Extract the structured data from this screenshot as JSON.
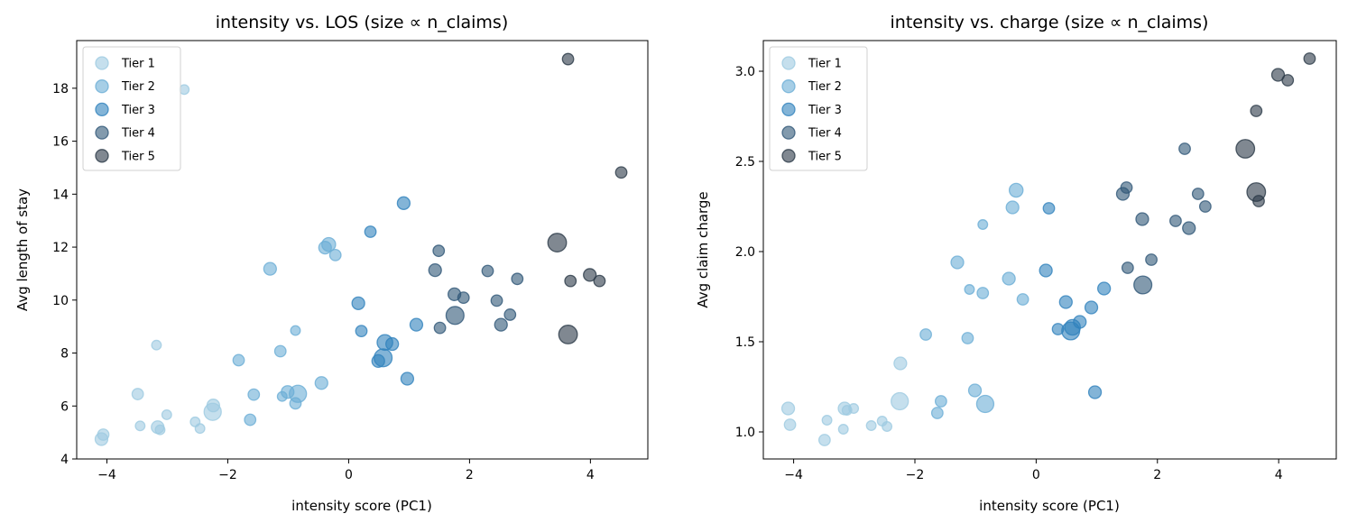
{
  "tier_colors": {
    "Tier 1": "#9ecae1",
    "Tier 2": "#6baed6",
    "Tier 3": "#3182bd",
    "Tier 4": "#2f5677",
    "Tier 5": "#2b3947"
  },
  "legend": [
    "Tier 1",
    "Tier 2",
    "Tier 3",
    "Tier 4",
    "Tier 5"
  ],
  "chart_data": [
    {
      "type": "scatter",
      "title": "intensity vs. LOS (size ∝ n_claims)",
      "xlabel": "intensity score (PC1)",
      "ylabel": "Avg length of stay",
      "xlim": [
        -4.5,
        4.95
      ],
      "ylim": [
        4,
        19.8
      ],
      "xticks": [
        -4,
        -2,
        0,
        2,
        4
      ],
      "yticks": [
        4,
        6,
        8,
        10,
        12,
        14,
        16,
        18
      ],
      "legend_position": "top-left",
      "grid": false,
      "yfield": "los"
    },
    {
      "type": "scatter",
      "title": "intensity vs. charge (size ∝ n_claims)",
      "xlabel": "intensity score (PC1)",
      "ylabel": "Avg claim charge",
      "xlim": [
        -4.5,
        4.95
      ],
      "ylim": [
        0.85,
        3.17
      ],
      "xticks": [
        -4,
        -2,
        0,
        2,
        4
      ],
      "yticks": [
        1.0,
        1.5,
        2.0,
        2.5,
        3.0
      ],
      "yticklabels": [
        "1.0",
        "1.5",
        "2.0",
        "2.5",
        "3.0"
      ],
      "legend_position": "top-left",
      "grid": false,
      "yfield": "charge"
    }
  ],
  "points": [
    {
      "x": -4.09,
      "los": 4.75,
      "charge": 1.13,
      "tier": "Tier 1",
      "size": 3
    },
    {
      "x": -4.06,
      "los": 4.92,
      "charge": 1.04,
      "tier": "Tier 1",
      "size": 2
    },
    {
      "x": -3.49,
      "los": 6.45,
      "charge": 0.955,
      "tier": "Tier 1",
      "size": 2
    },
    {
      "x": -3.45,
      "los": 5.25,
      "charge": 1.065,
      "tier": "Tier 1",
      "size": 1
    },
    {
      "x": -3.18,
      "los": 8.3,
      "charge": 1.015,
      "tier": "Tier 1",
      "size": 1
    },
    {
      "x": -3.16,
      "los": 5.2,
      "charge": 1.13,
      "tier": "Tier 1",
      "size": 3
    },
    {
      "x": -3.12,
      "los": 5.1,
      "charge": 1.12,
      "tier": "Tier 1",
      "size": 1
    },
    {
      "x": -3.01,
      "los": 5.67,
      "charge": 1.13,
      "tier": "Tier 1",
      "size": 1
    },
    {
      "x": -2.72,
      "los": 17.95,
      "charge": 1.035,
      "tier": "Tier 1",
      "size": 1
    },
    {
      "x": -2.54,
      "los": 5.4,
      "charge": 1.06,
      "tier": "Tier 1",
      "size": 1
    },
    {
      "x": -2.46,
      "los": 5.15,
      "charge": 1.03,
      "tier": "Tier 1",
      "size": 1
    },
    {
      "x": -2.25,
      "los": 5.78,
      "charge": 1.17,
      "tier": "Tier 1",
      "size": 8
    },
    {
      "x": -2.24,
      "los": 6.02,
      "charge": 1.38,
      "tier": "Tier 1",
      "size": 3
    },
    {
      "x": -1.82,
      "los": 7.73,
      "charge": 1.54,
      "tier": "Tier 2",
      "size": 2
    },
    {
      "x": -1.63,
      "los": 5.48,
      "charge": 1.105,
      "tier": "Tier 2",
      "size": 2
    },
    {
      "x": -1.57,
      "los": 6.43,
      "charge": 1.17,
      "tier": "Tier 2",
      "size": 2
    },
    {
      "x": -1.3,
      "los": 11.18,
      "charge": 1.94,
      "tier": "Tier 2",
      "size": 3
    },
    {
      "x": -1.13,
      "los": 8.07,
      "charge": 1.52,
      "tier": "Tier 2",
      "size": 2
    },
    {
      "x": -1.1,
      "los": 6.36,
      "charge": 1.79,
      "tier": "Tier 2",
      "size": 1
    },
    {
      "x": -1.01,
      "los": 6.53,
      "charge": 1.23,
      "tier": "Tier 2",
      "size": 3
    },
    {
      "x": -0.88,
      "los": 8.85,
      "charge": 2.15,
      "tier": "Tier 2",
      "size": 1
    },
    {
      "x": -0.88,
      "los": 6.1,
      "charge": 1.77,
      "tier": "Tier 2",
      "size": 2
    },
    {
      "x": -0.84,
      "los": 6.46,
      "charge": 1.155,
      "tier": "Tier 2",
      "size": 8
    },
    {
      "x": -0.45,
      "los": 6.87,
      "charge": 1.85,
      "tier": "Tier 2",
      "size": 3
    },
    {
      "x": -0.39,
      "los": 11.98,
      "charge": 2.245,
      "tier": "Tier 2",
      "size": 3
    },
    {
      "x": -0.33,
      "los": 12.1,
      "charge": 2.34,
      "tier": "Tier 2",
      "size": 4
    },
    {
      "x": -0.22,
      "los": 11.7,
      "charge": 1.735,
      "tier": "Tier 2",
      "size": 2
    },
    {
      "x": 0.16,
      "los": 9.88,
      "charge": 1.895,
      "tier": "Tier 3",
      "size": 3
    },
    {
      "x": 0.21,
      "los": 8.83,
      "charge": 2.24,
      "tier": "Tier 3",
      "size": 2
    },
    {
      "x": 0.36,
      "los": 12.58,
      "charge": 1.57,
      "tier": "Tier 3",
      "size": 2
    },
    {
      "x": 0.49,
      "los": 7.7,
      "charge": 1.72,
      "tier": "Tier 3",
      "size": 3
    },
    {
      "x": 0.57,
      "los": 7.82,
      "charge": 1.56,
      "tier": "Tier 3",
      "size": 9
    },
    {
      "x": 0.6,
      "los": 8.4,
      "charge": 1.58,
      "tier": "Tier 3",
      "size": 6
    },
    {
      "x": 0.72,
      "los": 8.34,
      "charge": 1.61,
      "tier": "Tier 3",
      "size": 3
    },
    {
      "x": 0.91,
      "los": 13.66,
      "charge": 1.69,
      "tier": "Tier 3",
      "size": 3
    },
    {
      "x": 0.97,
      "los": 7.03,
      "charge": 1.22,
      "tier": "Tier 3",
      "size": 3
    },
    {
      "x": 1.12,
      "los": 9.07,
      "charge": 1.795,
      "tier": "Tier 3",
      "size": 3
    },
    {
      "x": 1.43,
      "los": 11.13,
      "charge": 2.32,
      "tier": "Tier 4",
      "size": 3
    },
    {
      "x": 1.49,
      "los": 11.86,
      "charge": 2.355,
      "tier": "Tier 4",
      "size": 2
    },
    {
      "x": 1.51,
      "los": 8.95,
      "charge": 1.91,
      "tier": "Tier 4",
      "size": 2
    },
    {
      "x": 1.75,
      "los": 10.22,
      "charge": 2.18,
      "tier": "Tier 4",
      "size": 3
    },
    {
      "x": 1.76,
      "los": 9.42,
      "charge": 1.815,
      "tier": "Tier 4",
      "size": 9
    },
    {
      "x": 1.9,
      "los": 10.09,
      "charge": 1.955,
      "tier": "Tier 4",
      "size": 2
    },
    {
      "x": 2.3,
      "los": 11.1,
      "charge": 2.17,
      "tier": "Tier 4",
      "size": 2
    },
    {
      "x": 2.45,
      "los": 9.98,
      "charge": 2.57,
      "tier": "Tier 4",
      "size": 2
    },
    {
      "x": 2.52,
      "los": 9.07,
      "charge": 2.13,
      "tier": "Tier 4",
      "size": 3
    },
    {
      "x": 2.67,
      "los": 9.45,
      "charge": 2.32,
      "tier": "Tier 4",
      "size": 2
    },
    {
      "x": 2.79,
      "los": 10.8,
      "charge": 2.25,
      "tier": "Tier 4",
      "size": 2
    },
    {
      "x": 3.45,
      "los": 12.17,
      "charge": 2.57,
      "tier": "Tier 5",
      "size": 10
    },
    {
      "x": 3.63,
      "los": 8.7,
      "charge": 2.33,
      "tier": "Tier 5",
      "size": 10
    },
    {
      "x": 3.63,
      "los": 19.1,
      "charge": 2.78,
      "tier": "Tier 5",
      "size": 2
    },
    {
      "x": 3.67,
      "los": 10.72,
      "charge": 2.28,
      "tier": "Tier 5",
      "size": 2
    },
    {
      "x": 3.99,
      "los": 10.95,
      "charge": 2.98,
      "tier": "Tier 5",
      "size": 3
    },
    {
      "x": 4.15,
      "los": 10.72,
      "charge": 2.95,
      "tier": "Tier 5",
      "size": 2
    },
    {
      "x": 4.51,
      "los": 14.82,
      "charge": 3.07,
      "tier": "Tier 5",
      "size": 2
    }
  ]
}
